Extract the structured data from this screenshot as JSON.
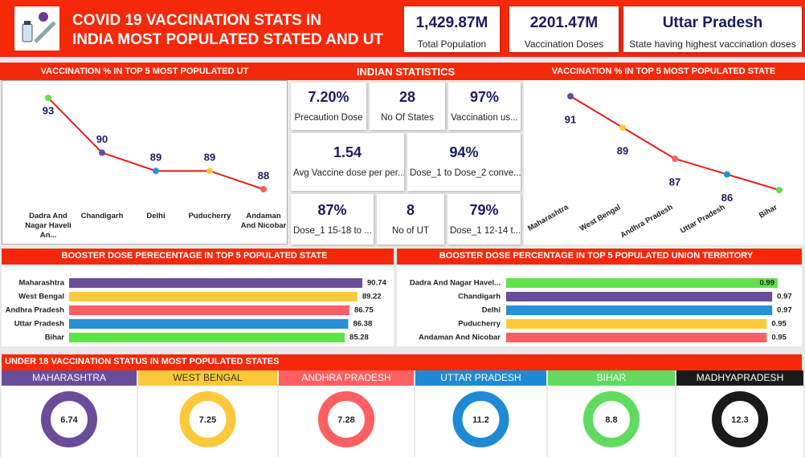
{
  "header": {
    "title": [
      "COVID 19 VACCINATION STATS IN",
      "INDIA MOST POPULATED STATED AND UT"
    ]
  },
  "kpis": [
    {
      "value": "1,429.87M",
      "label": "Total Population"
    },
    {
      "value": "2201.47M",
      "label": "Vaccination Doses"
    },
    {
      "value": "Uttar Pradesh",
      "label": "State having highest vaccination doses"
    }
  ],
  "indian_statistics": {
    "title": "INDIAN STATISTICS",
    "cards": [
      {
        "value": "7.20%",
        "label": "Precaution Dose"
      },
      {
        "value": "28",
        "label": "No Of States"
      },
      {
        "value": "97%",
        "label": "Vaccination us..."
      },
      {
        "value": "1.54",
        "label": "Avg Vaccine dose per per..."
      },
      {
        "value": "94%",
        "label": "Dose_1 to Dose_2 conve..."
      },
      {
        "value": "87%",
        "label": "Dose_1 15-18 to ..."
      },
      {
        "value": "8",
        "label": "No of UT"
      },
      {
        "value": "79%",
        "label": "Dose_1 12-14 t..."
      }
    ]
  },
  "chart_data": [
    {
      "type": "line",
      "title": "VACCINATION % IN TOP 5 MOST POPULATED UT",
      "categories": [
        "Dadra And Nagar Haveli An...",
        "Chandigarh",
        "Delhi",
        "Puducherry",
        "Andaman And Nicobar"
      ],
      "values": [
        93,
        90,
        89,
        89,
        88
      ],
      "line_color": "#e0201c",
      "colors": [
        "#5ee34a",
        "#6b4c9a",
        "#2a8fd6",
        "#fdc93b",
        "#fd5f62"
      ],
      "rotate_labels": false
    },
    {
      "type": "line",
      "title": "VACCINATION % IN TOP 5 MOST POPULATED STATE",
      "categories": [
        "Maharashtra",
        "West Bengal",
        "Andhra Pradesh",
        "Uttar Pradesh",
        "Bihar"
      ],
      "values": [
        91,
        89,
        87,
        86,
        85
      ],
      "value_labels": [
        "91",
        "89",
        "87",
        "86",
        null
      ],
      "line_color": "#e0201c",
      "colors": [
        "#6b4c9a",
        "#fdc93b",
        "#fd5f62",
        "#2a8fd6",
        "#5ee34a"
      ],
      "rotate_labels": true
    },
    {
      "type": "hbar",
      "title": "BOOSTER DOSE PERECENTAGE IN TOP 5 POPULATED STATE",
      "categories": [
        "Maharashtra",
        "West Bengal",
        "Andhra Pradesh",
        "Uttar Pradesh",
        "Bihar"
      ],
      "values": [
        90.74,
        89.22,
        86.75,
        86.38,
        85.28
      ],
      "colors": [
        "#6b4c9a",
        "#fdc93b",
        "#fd5f62",
        "#2a8fd6",
        "#5ee34a"
      ]
    },
    {
      "type": "hbar",
      "title": "BOOSTER DOSE PERCENTAGE IN TOP 5 POPULATED UNION TERRITORY",
      "categories": [
        "Dadra And Nagar Havel...",
        "Chandigarh",
        "Delhi",
        "Puducherry",
        "Andaman And Nicobar"
      ],
      "values": [
        0.99,
        0.97,
        0.97,
        0.95,
        0.95
      ],
      "colors": [
        "#5ee34a",
        "#6b4c9a",
        "#2a8fd6",
        "#fdc93b",
        "#fd5f62"
      ]
    }
  ],
  "under18": {
    "title": "UNDER 18 VACCINATION STATUS IN MOST POPULATED STATES",
    "items": [
      {
        "name": "MAHARASHTRA",
        "color": "#6b4c9a",
        "value": 6.74
      },
      {
        "name": "WEST BENGAL",
        "color": "#fdc93b",
        "value": 7.25
      },
      {
        "name": "ANDHRA PRADESH",
        "color": "#fd5f62",
        "value": 7.28
      },
      {
        "name": "UTTAR PRADESH",
        "color": "#1f8ad4",
        "value": 11.2
      },
      {
        "name": "BIHAR",
        "color": "#5fdc5f",
        "value": 8.8
      },
      {
        "name": "MADHYAPRADESH",
        "color": "#1a1a1a",
        "value": 12.3
      }
    ]
  }
}
